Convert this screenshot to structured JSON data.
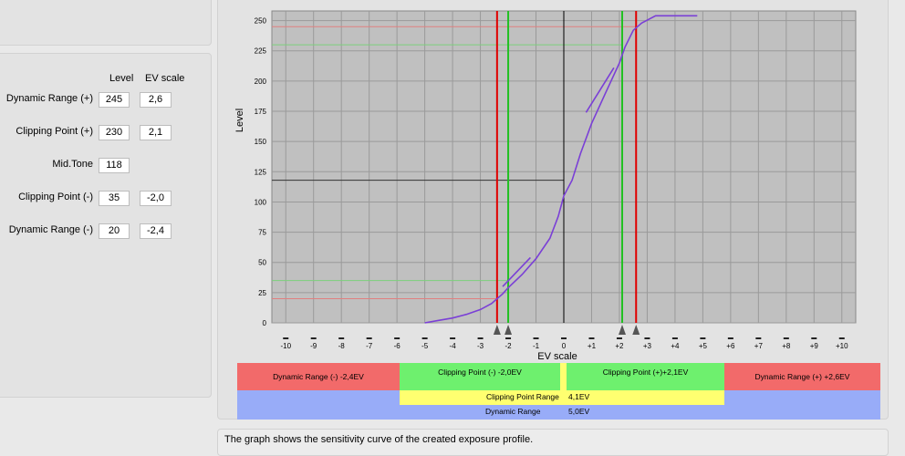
{
  "table": {
    "col_level": "Level",
    "col_ev": "EV scale",
    "rows": [
      {
        "label": "Dynamic Range (+)",
        "level": "245",
        "ev": "2,6"
      },
      {
        "label": "Clipping Point (+)",
        "level": "230",
        "ev": "2,1"
      },
      {
        "label": "Mid.Tone",
        "level": "118",
        "ev": ""
      },
      {
        "label": "Clipping Point (-)",
        "level": "35",
        "ev": "-2,0"
      },
      {
        "label": "Dynamic Range (-)",
        "level": "20",
        "ev": "-2,4"
      }
    ]
  },
  "chart_data": {
    "type": "line",
    "ylabel": "Level",
    "xlabel": "EV scale",
    "xlim": [
      -10.5,
      10.5
    ],
    "ylim": [
      0,
      258
    ],
    "x_ticks": [
      "-10",
      "-9",
      "-8",
      "-7",
      "-6",
      "-5",
      "-4",
      "-3",
      "-2",
      "-1",
      "0",
      "+1",
      "+2",
      "+3",
      "+4",
      "+5",
      "+6",
      "+7",
      "+8",
      "+9",
      "+10"
    ],
    "y_ticks": [
      "0",
      "25",
      "50",
      "75",
      "100",
      "125",
      "150",
      "175",
      "200",
      "225",
      "250"
    ],
    "grid": true,
    "series": [
      {
        "values_xy": [
          [
            -5.0,
            0
          ],
          [
            -4.5,
            2
          ],
          [
            -4,
            4
          ],
          [
            -3.5,
            7
          ],
          [
            -3,
            11
          ],
          [
            -2.6,
            16
          ],
          [
            -2.4,
            20
          ],
          [
            -2.2,
            24
          ],
          [
            -2,
            29
          ],
          [
            -1.5,
            40
          ],
          [
            -1,
            53
          ],
          [
            -0.5,
            70
          ],
          [
            -0.2,
            88
          ],
          [
            0,
            105
          ],
          [
            0.3,
            118
          ],
          [
            0.6,
            140
          ],
          [
            1,
            165
          ],
          [
            1.5,
            190
          ],
          [
            2,
            215
          ],
          [
            2.2,
            228
          ],
          [
            2.5,
            242
          ],
          [
            2.8,
            248
          ],
          [
            3.3,
            254
          ],
          [
            4.8,
            254
          ]
        ]
      },
      {
        "values_xy": [
          [
            -2.2,
            30
          ],
          [
            -1.2,
            54
          ]
        ]
      },
      {
        "values_xy": [
          [
            0.8,
            174
          ],
          [
            1.8,
            211
          ]
        ]
      }
    ],
    "vertical_markers": [
      {
        "ev": -2.4,
        "color": "#e00000"
      },
      {
        "ev": -2.0,
        "color": "#22c022"
      },
      {
        "ev": 2.1,
        "color": "#22c022"
      },
      {
        "ev": 2.6,
        "color": "#e00000"
      },
      {
        "ev": 0,
        "color": "#000000"
      }
    ],
    "horizontal_markers": [
      {
        "level": 245,
        "color": "#e08080"
      },
      {
        "level": 230,
        "color": "#7cd07c"
      },
      {
        "level": 118,
        "color": "#333333"
      },
      {
        "level": 35,
        "color": "#7cd07c"
      },
      {
        "level": 20,
        "color": "#e08080"
      }
    ]
  },
  "bands": {
    "dr_minus": "Dynamic Range (-) -2,4EV",
    "cp_minus": "Clipping Point (-) -2,0EV",
    "cp_plus": "Clipping Point (+)+2,1EV",
    "dr_plus": "Dynamic Range (+) +2,6EV",
    "cp_range_label": "Clipping Point Range",
    "cp_range_value": "4,1EV",
    "dr_label": "Dynamic Range",
    "dr_value": "5,0EV"
  },
  "colors": {
    "red_band": "#f26a6a",
    "green_band": "#6ef06e",
    "yellow_band": "#ffff70",
    "blue_band": "#98acf8",
    "curve": "#7a3fd6",
    "plot_bg": "#c0c0c0"
  },
  "caption": "The graph shows the sensitivity curve of the created exposure profile."
}
